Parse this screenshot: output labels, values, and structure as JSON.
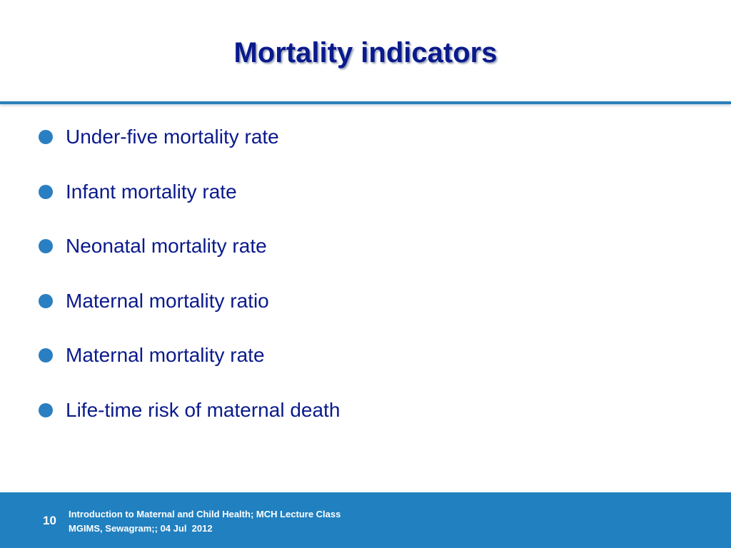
{
  "slide": {
    "title": "Mortality indicators",
    "bullets": [
      {
        "text": "Under-five mortality rate"
      },
      {
        "text": "Infant mortality rate"
      },
      {
        "text": "Neonatal mortality rate"
      },
      {
        "text": "Maternal mortality ratio"
      },
      {
        "text": "Maternal mortality rate"
      },
      {
        "text": "Life-time risk of maternal death"
      }
    ]
  },
  "footer": {
    "page_number": "10",
    "line1": "Introduction to Maternal and Child Health; MCH Lecture Class",
    "line2": "MGIMS, Sewagram;; 04 Jul  2012"
  },
  "colors": {
    "title": "#0a1a8c",
    "accent": "#2a7fc2",
    "footer_bg": "#2180c0"
  }
}
